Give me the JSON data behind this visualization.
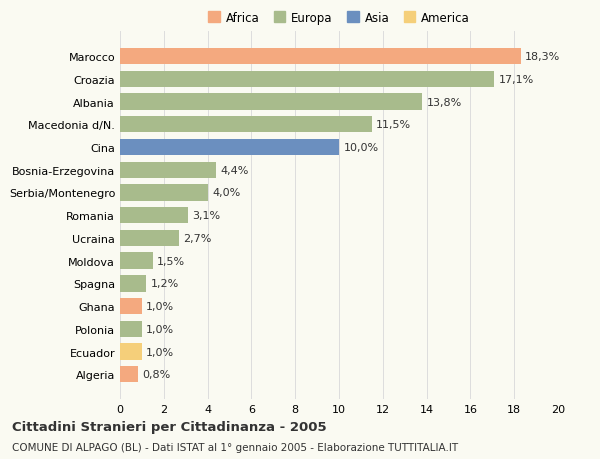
{
  "categories": [
    "Algeria",
    "Ecuador",
    "Polonia",
    "Ghana",
    "Spagna",
    "Moldova",
    "Ucraina",
    "Romania",
    "Serbia/Montenegro",
    "Bosnia-Erzegovina",
    "Cina",
    "Macedonia d/N.",
    "Albania",
    "Croazia",
    "Marocco"
  ],
  "values": [
    0.8,
    1.0,
    1.0,
    1.0,
    1.2,
    1.5,
    2.7,
    3.1,
    4.0,
    4.4,
    10.0,
    11.5,
    13.8,
    17.1,
    18.3
  ],
  "labels": [
    "0,8%",
    "1,0%",
    "1,0%",
    "1,0%",
    "1,2%",
    "1,5%",
    "2,7%",
    "3,1%",
    "4,0%",
    "4,4%",
    "10,0%",
    "11,5%",
    "13,8%",
    "17,1%",
    "18,3%"
  ],
  "continents": [
    "Africa",
    "America",
    "Europa",
    "Africa",
    "Europa",
    "Europa",
    "Europa",
    "Europa",
    "Europa",
    "Europa",
    "Asia",
    "Europa",
    "Europa",
    "Europa",
    "Africa"
  ],
  "continent_colors": {
    "Africa": "#F4A97F",
    "Europa": "#A8BB8C",
    "Asia": "#6B8FBF",
    "America": "#F5CF7A"
  },
  "legend_order": [
    "Africa",
    "Europa",
    "Asia",
    "America"
  ],
  "xlim": [
    0,
    20
  ],
  "xticks": [
    0,
    2,
    4,
    6,
    8,
    10,
    12,
    14,
    16,
    18,
    20
  ],
  "title": "Cittadini Stranieri per Cittadinanza - 2005",
  "subtitle": "COMUNE DI ALPAGO (BL) - Dati ISTAT al 1° gennaio 2005 - Elaborazione TUTTITALIA.IT",
  "bar_height": 0.72,
  "background_color": "#FAFAF2",
  "grid_color": "#DDDDDD",
  "text_color": "#333333",
  "label_fontsize": 8,
  "tick_fontsize": 8,
  "title_fontsize": 9.5,
  "subtitle_fontsize": 7.5,
  "legend_fontsize": 8.5
}
